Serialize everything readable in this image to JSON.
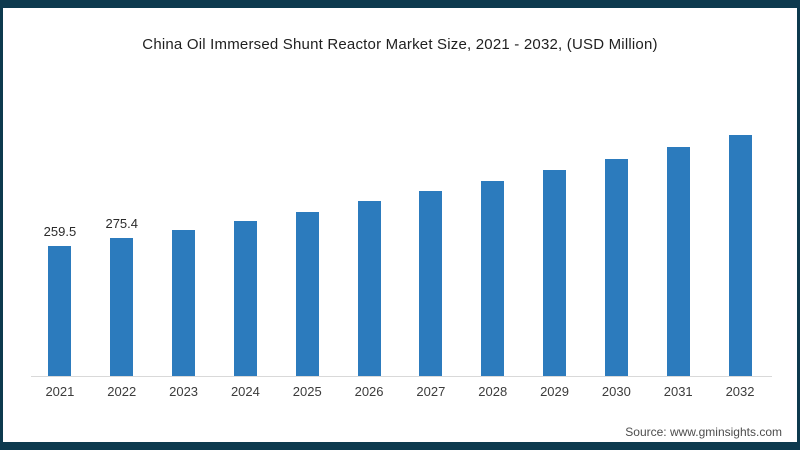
{
  "title": "China Oil Immersed Shunt Reactor Market Size, 2021 - 2032, (USD Million)",
  "source": "Source: www.gminsights.com",
  "colors": {
    "bar": "#2c7bbd",
    "frame_border": "#0d3a4e",
    "axis_line": "#d9d9d9",
    "title_text": "#1f1f1f",
    "label_text": "#2b2b2b",
    "tick_text": "#3c3c3c"
  },
  "chart_data": {
    "type": "bar",
    "title": "China Oil Immersed Shunt Reactor Market Size, 2021 - 2032, (USD Million)",
    "categories": [
      "2021",
      "2022",
      "2023",
      "2024",
      "2025",
      "2026",
      "2027",
      "2028",
      "2029",
      "2030",
      "2031",
      "2032"
    ],
    "values": [
      259.5,
      275.4,
      292,
      310,
      327,
      349,
      369,
      389,
      411,
      434,
      457,
      482
    ],
    "visible_value_labels": [
      "259.5",
      "275.4",
      "",
      "",
      "",
      "",
      "",
      "",
      "",
      "",
      "",
      ""
    ],
    "xlabel": "",
    "ylabel": "USD Million",
    "ylim": [
      0,
      500
    ],
    "grid": false,
    "legend": false
  }
}
